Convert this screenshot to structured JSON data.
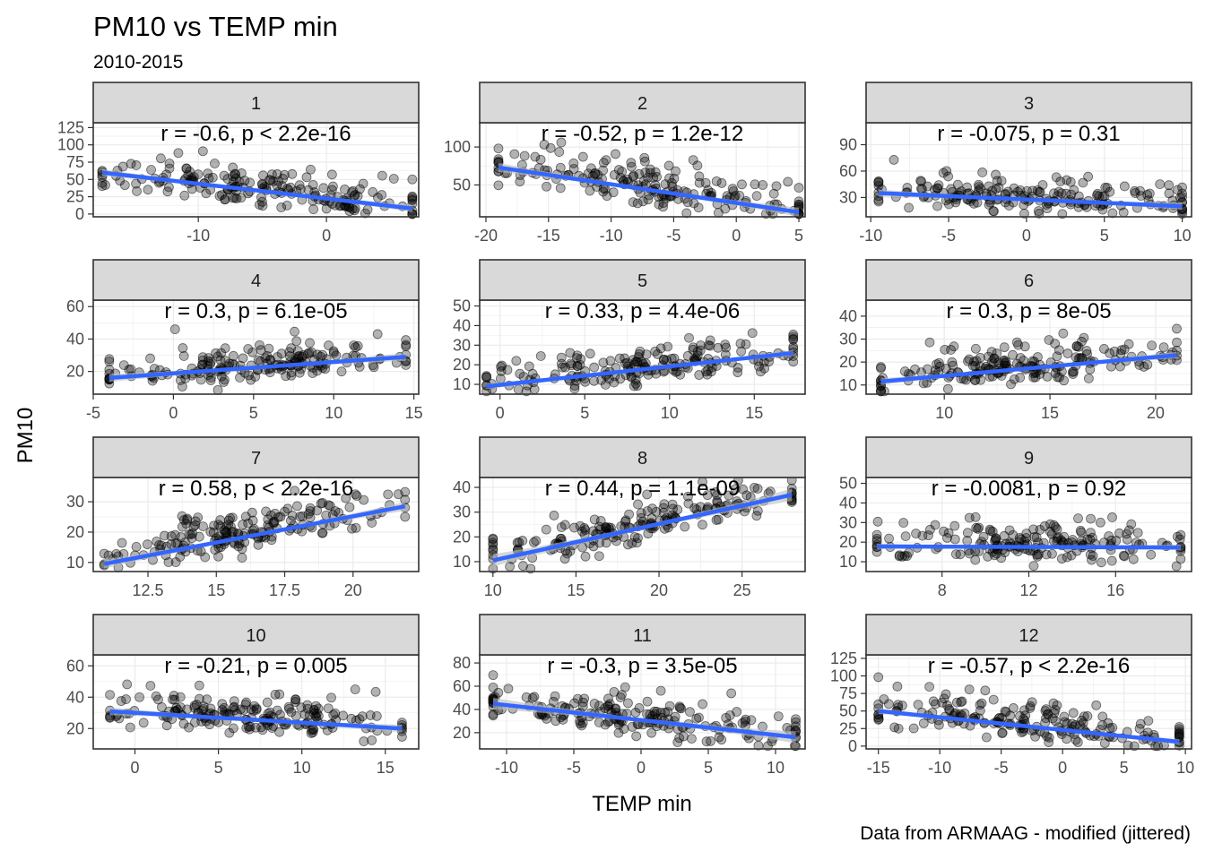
{
  "title": "PM10 vs TEMP min",
  "subtitle": "2010-2015",
  "xlabel": "TEMP min",
  "ylabel": "PM10",
  "caption": "Data from ARMAAG - modified (jittered)",
  "colors": {
    "fit_line": "#3366FF",
    "ci_band": "#bdbdbd",
    "points": "#000000",
    "strip_bg": "#d9d9d9",
    "grid": "#ebebeb"
  },
  "chart_data": {
    "type": "scatter",
    "facets": [
      {
        "label": "1",
        "annotation": "r = -0.6, p < 2.2e-16",
        "xlim": [
          -18.2,
          7.2
        ],
        "ylim": [
          -4,
          132
        ],
        "xticks": [
          -10,
          0
        ],
        "yticks": [
          0,
          25,
          50,
          75,
          100,
          125
        ],
        "fit": [
          [
            -17.5,
            60
          ],
          [
            6.7,
            8
          ]
        ],
        "ci": 5
      },
      {
        "label": "2",
        "annotation": "r = -0.52, p = 1.2e-12",
        "xlim": [
          -20.5,
          5.5
        ],
        "ylim": [
          8,
          132
        ],
        "xticks": [
          -20,
          -15,
          -10,
          -5,
          0,
          5
        ],
        "yticks": [
          50,
          100
        ],
        "fit": [
          [
            -19,
            73
          ],
          [
            5,
            14
          ]
        ],
        "ci": 6
      },
      {
        "label": "3",
        "annotation": "r = -0.075, p = 0.31",
        "xlim": [
          -10.3,
          10.6
        ],
        "ylim": [
          8,
          115
        ],
        "xticks": [
          -10,
          -5,
          0,
          5,
          10
        ],
        "yticks": [
          30,
          60,
          90
        ],
        "fit": [
          [
            -9.5,
            35
          ],
          [
            10,
            20
          ]
        ],
        "ci": 4
      },
      {
        "label": "4",
        "annotation": "r = 0.3, p = 6.1e-05",
        "xlim": [
          -5,
          15.3
        ],
        "ylim": [
          6,
          64
        ],
        "xticks": [
          -5,
          0,
          5,
          10,
          15
        ],
        "yticks": [
          20,
          40,
          60
        ],
        "fit": [
          [
            -4,
            16
          ],
          [
            14.5,
            29
          ]
        ],
        "ci": 2.5
      },
      {
        "label": "5",
        "annotation": "r = 0.33, p = 4.4e-06",
        "xlim": [
          -1.2,
          18
        ],
        "ylim": [
          5,
          53
        ],
        "xticks": [
          0,
          5,
          10,
          15
        ],
        "yticks": [
          10,
          20,
          30,
          40,
          50
        ],
        "fit": [
          [
            -0.8,
            9
          ],
          [
            17.3,
            26
          ]
        ],
        "ci": 1.5
      },
      {
        "label": "6",
        "annotation": "r = 0.3, p = 8e-05",
        "xlim": [
          6.3,
          21.7
        ],
        "ylim": [
          6,
          47
        ],
        "xticks": [
          10,
          15,
          20
        ],
        "yticks": [
          10,
          20,
          30,
          40
        ],
        "fit": [
          [
            7,
            11.5
          ],
          [
            21,
            23
          ]
        ],
        "ci": 1.5
      },
      {
        "label": "7",
        "annotation": "r = 0.58, p < 2.2e-16",
        "xlim": [
          10.5,
          22.4
        ],
        "ylim": [
          7,
          38
        ],
        "xticks": [
          12.5,
          15.0,
          17.5,
          20.0
        ],
        "yticks": [
          10,
          20,
          30
        ],
        "fit": [
          [
            10.9,
            9.5
          ],
          [
            21.9,
            28.5
          ]
        ],
        "ci": 1.5
      },
      {
        "label": "8",
        "annotation": "r = 0.44, p = 1.1e-09",
        "xlim": [
          9.2,
          28.8
        ],
        "ylim": [
          6,
          44
        ],
        "xticks": [
          10,
          15,
          20,
          25
        ],
        "yticks": [
          10,
          20,
          30,
          40
        ],
        "fit": [
          [
            10,
            10.5
          ],
          [
            28,
            37
          ]
        ],
        "ci": 2.5
      },
      {
        "label": "9",
        "annotation": "r = -0.0081, p = 0.92",
        "xlim": [
          4.5,
          19.5
        ],
        "ylim": [
          5,
          53
        ],
        "xticks": [
          8,
          12,
          16
        ],
        "yticks": [
          10,
          20,
          30,
          40,
          50
        ],
        "fit": [
          [
            5,
            17.8
          ],
          [
            19,
            17.3
          ]
        ],
        "ci": 1.5
      },
      {
        "label": "10",
        "annotation": "r = -0.21, p = 0.005",
        "xlim": [
          -2.5,
          17
        ],
        "ylim": [
          7,
          67
        ],
        "xticks": [
          0,
          5,
          10,
          15
        ],
        "yticks": [
          20,
          40,
          60
        ],
        "fit": [
          [
            -1.5,
            31
          ],
          [
            16,
            20
          ]
        ],
        "ci": 2.5
      },
      {
        "label": "11",
        "annotation": "r = -0.3, p = 3.5e-05",
        "xlim": [
          -12,
          12.2
        ],
        "ylim": [
          6,
          87
        ],
        "xticks": [
          -10,
          -5,
          0,
          5,
          10
        ],
        "yticks": [
          20,
          40,
          60,
          80
        ],
        "fit": [
          [
            -11,
            45
          ],
          [
            11.5,
            16
          ]
        ],
        "ci": 5
      },
      {
        "label": "12",
        "annotation": "r = -0.57, p < 2.2e-16",
        "xlim": [
          -16,
          10.5
        ],
        "ylim": [
          -4,
          130
        ],
        "xticks": [
          -15,
          -10,
          -5,
          0,
          5,
          10
        ],
        "yticks": [
          0,
          25,
          50,
          75,
          100,
          125
        ],
        "fit": [
          [
            -15,
            50
          ],
          [
            9.5,
            6
          ]
        ],
        "ci": 4
      }
    ]
  }
}
